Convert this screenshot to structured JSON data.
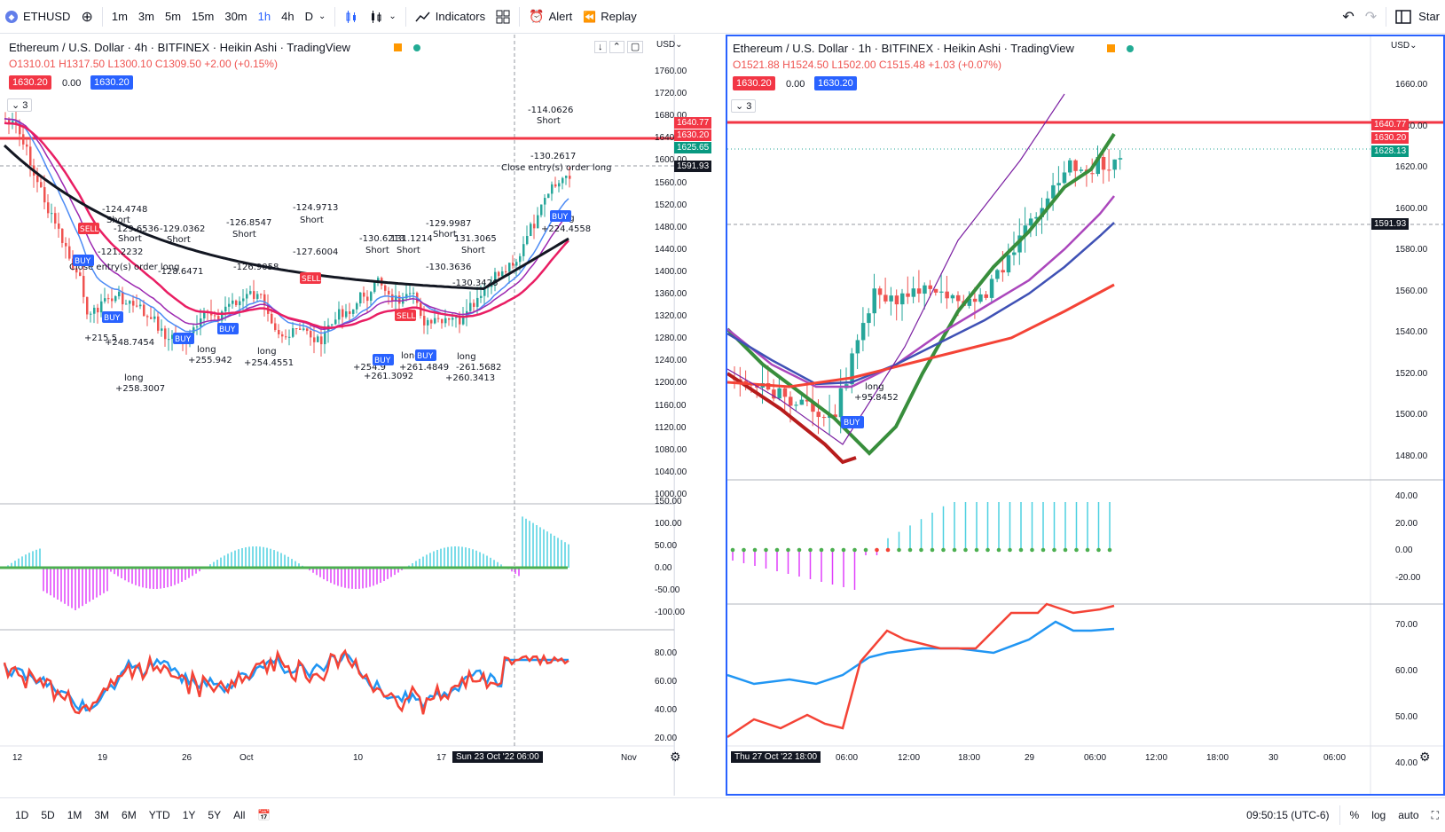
{
  "toolbar": {
    "symbol": "ETHUSD",
    "intervals": [
      "1m",
      "3m",
      "5m",
      "15m",
      "30m",
      "1h",
      "4h",
      "D"
    ],
    "active_interval": "1h",
    "indicators_label": "Indicators",
    "alert_label": "Alert",
    "replay_label": "Replay",
    "star_label": "Star"
  },
  "left_chart": {
    "title": "Ethereum / U.S. Dollar · 4h · BITFINEX · Heikin Ashi · TradingView",
    "ohlc": {
      "o": "O1310.01",
      "h": "H1317.50",
      "l": "L1300.10",
      "c": "C1309.50",
      "chg": "+2.00 (+0.15%)"
    },
    "bid": "1630.20",
    "spread": "0.00",
    "ask": "1630.20",
    "collapse_count": "3",
    "currency": "USD",
    "price_axis": [
      "1760.00",
      "1720.00",
      "1680.00",
      "1640.00",
      "1600.00",
      "1560.00",
      "1520.00",
      "1480.00",
      "1440.00",
      "1400.00",
      "1360.00",
      "1320.00",
      "1280.00",
      "1240.00",
      "1200.00",
      "1160.00",
      "1120.00",
      "1080.00",
      "1040.00",
      "1000.00"
    ],
    "osc1_axis": [
      "150.00",
      "100.00",
      "50.00",
      "0.00",
      "-50.00",
      "-100.00"
    ],
    "osc2_axis": [
      "80.00",
      "60.00",
      "40.00",
      "20.00"
    ],
    "price_tags": [
      {
        "label": "1640.77",
        "color": "#f23645"
      },
      {
        "label": "1630.20",
        "color": "#f23645"
      },
      {
        "label": "1625.65",
        "color": "#089981"
      },
      {
        "label": "1591.93",
        "color": "#131722"
      }
    ],
    "time_axis": [
      "12",
      "19",
      "26",
      "Oct",
      "10",
      "17",
      "Nov"
    ],
    "time_highlight": "Sun 23 Oct '22   06:00",
    "annotations": [
      {
        "text": "-114.0626"
      },
      {
        "text": "Short"
      },
      {
        "text": "-130.2617"
      },
      {
        "text": "Close entry(s) order long"
      },
      {
        "text": "-124.4748"
      },
      {
        "text": "Short"
      },
      {
        "text": "-129.6536"
      },
      {
        "text": "Short"
      },
      {
        "text": "-129.0362"
      },
      {
        "text": "Short"
      },
      {
        "text": "-126.8547"
      },
      {
        "text": "Short"
      },
      {
        "text": "-124.9713"
      },
      {
        "text": "Short"
      },
      {
        "text": "-130.6213"
      },
      {
        "text": "Short"
      },
      {
        "text": "131.1214"
      },
      {
        "text": "Short"
      },
      {
        "text": "-129.9987"
      },
      {
        "text": "Short"
      },
      {
        "text": "131.3065"
      },
      {
        "text": "Short"
      },
      {
        "text": "-127.6004"
      },
      {
        "text": "-126.9058"
      },
      {
        "text": "-128.6471"
      },
      {
        "text": "-121.2232"
      },
      {
        "text": "Close entry(s) order long"
      },
      {
        "text": "+215.5"
      },
      {
        "text": "+248.7454"
      },
      {
        "text": "long"
      },
      {
        "text": "+258.3007"
      },
      {
        "text": "long"
      },
      {
        "text": "+255.942"
      },
      {
        "text": "long"
      },
      {
        "text": "+254.4551"
      },
      {
        "text": "+254.9"
      },
      {
        "text": "+261.3092"
      },
      {
        "text": "long"
      },
      {
        "text": "+261.4849"
      },
      {
        "text": "long"
      },
      {
        "text": "+260.3413"
      },
      {
        "text": "-261.5682"
      },
      {
        "text": "long"
      },
      {
        "text": "+224.4558"
      },
      {
        "text": "-130.3636"
      },
      {
        "text": "-130.3426"
      }
    ],
    "badges": [
      "SELL",
      "BUY",
      "BUY",
      "BUY",
      "BUY",
      "SELL",
      "BUY",
      "SELL",
      "BUY",
      "BUY"
    ]
  },
  "right_chart": {
    "title": "Ethereum / U.S. Dollar · 1h · BITFINEX · Heikin Ashi · TradingView",
    "ohlc": {
      "o": "O1521.88",
      "h": "H1524.50",
      "l": "L1502.00",
      "c": "C1515.48",
      "chg": "+1.03 (+0.07%)"
    },
    "bid": "1630.20",
    "spread": "0.00",
    "ask": "1630.20",
    "collapse_count": "3",
    "currency": "USD",
    "price_axis": [
      "1660.00",
      "1640.00",
      "1620.00",
      "1600.00",
      "1580.00",
      "1560.00",
      "1540.00",
      "1520.00",
      "1500.00",
      "1480.00"
    ],
    "osc1_axis": [
      "40.00",
      "20.00",
      "0.00",
      "-20.00"
    ],
    "osc2_axis": [
      "70.00",
      "60.00",
      "50.00",
      "40.00"
    ],
    "price_tags": [
      {
        "label": "1640.77",
        "color": "#f23645"
      },
      {
        "label": "1630.20",
        "color": "#f23645"
      },
      {
        "label": "1628.13",
        "color": "#089981"
      },
      {
        "label": "1591.93",
        "color": "#131722"
      }
    ],
    "time_axis": [
      "06:00",
      "12:00",
      "18:00",
      "29",
      "06:00",
      "12:00",
      "18:00",
      "30",
      "06:00"
    ],
    "time_highlight": "Thu 27 Oct '22   18:00",
    "annotations": [
      {
        "text": "long"
      },
      {
        "text": "+95.8452"
      }
    ],
    "badges": [
      "BUY"
    ]
  },
  "bottombar": {
    "ranges": [
      "1D",
      "5D",
      "1M",
      "3M",
      "6M",
      "YTD",
      "1Y",
      "5Y",
      "All"
    ],
    "clock": "09:50:15 (UTC-6)",
    "percent": "%",
    "log": "log",
    "auto": "auto"
  },
  "colors": {
    "accent": "#2962ff",
    "bull": "#26a69a",
    "bear": "#ef5350",
    "resistance": "#f23645"
  }
}
